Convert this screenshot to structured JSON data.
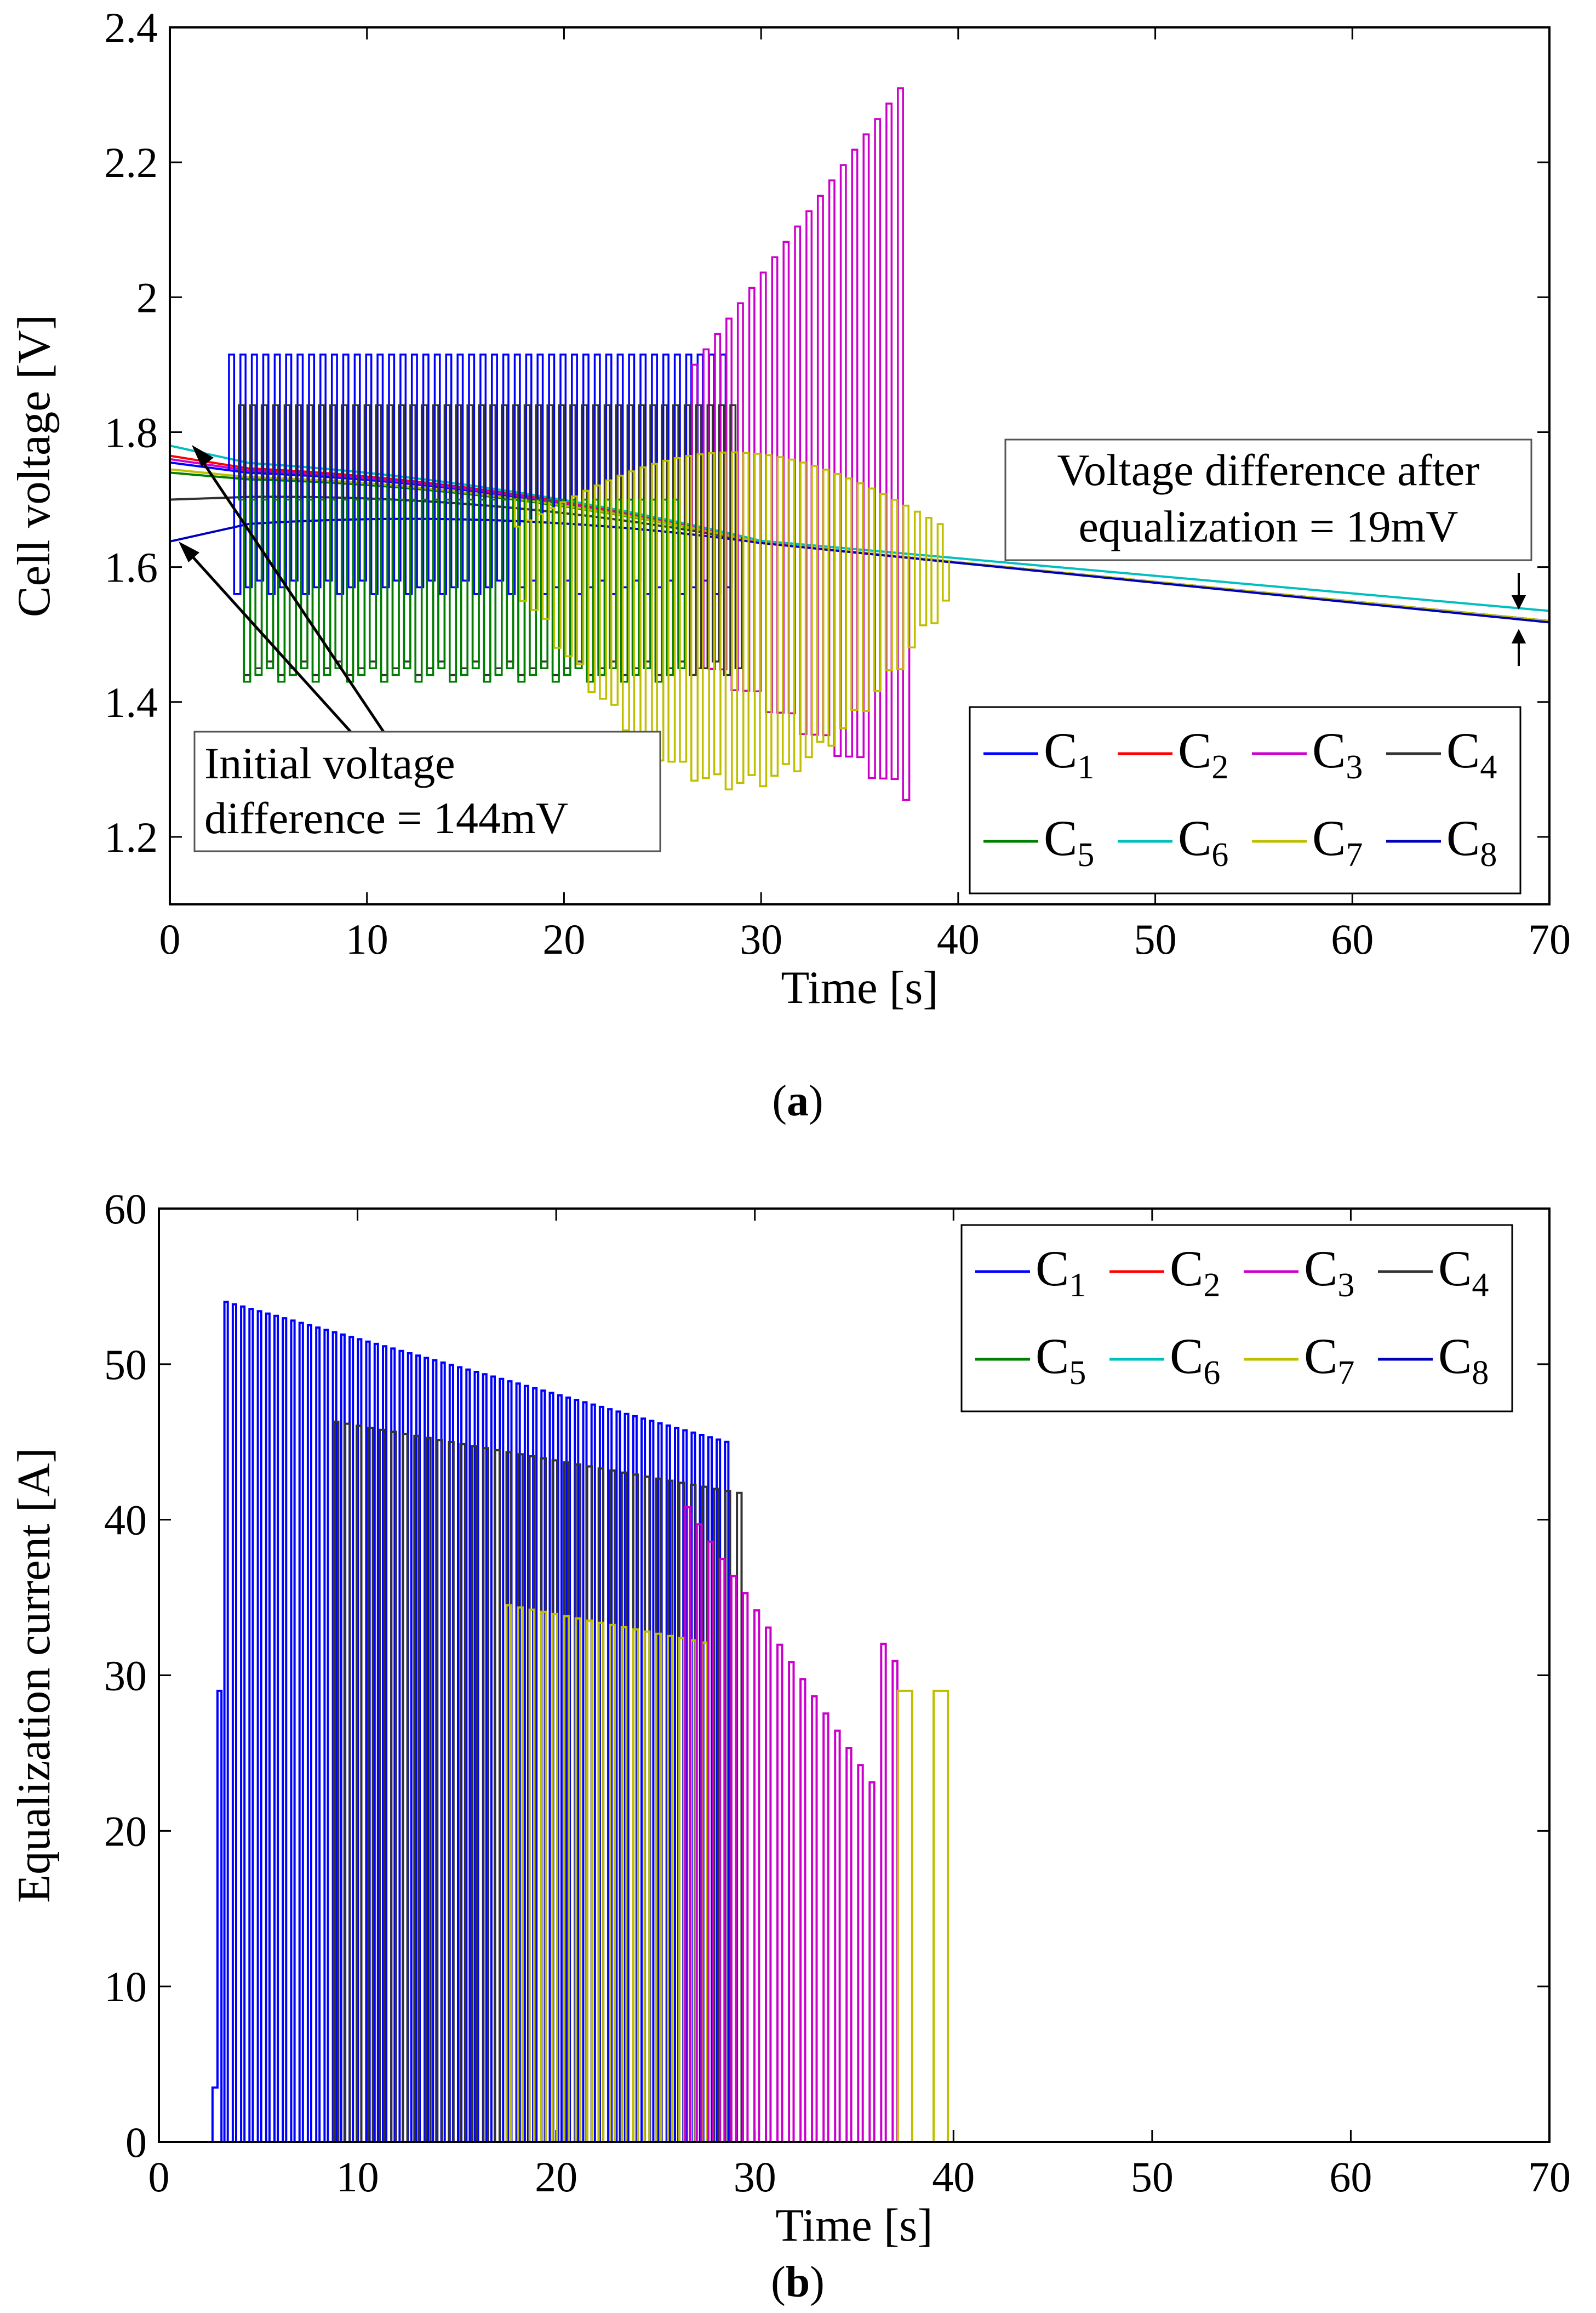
{
  "chart_data": [
    {
      "type": "line",
      "caption_letter": "a",
      "xlabel": "Time [s]",
      "ylabel": "Cell voltage [V]",
      "xlim": [
        0,
        70
      ],
      "ylim": [
        1.1,
        2.4
      ],
      "xticks": [
        "0",
        "10",
        "20",
        "30",
        "40",
        "50",
        "60",
        "70"
      ],
      "yticks": [
        "1.2",
        "1.4",
        "1.6",
        "1.8",
        "2",
        "2.2",
        "2.4"
      ],
      "legend_position": "bottom-right",
      "legend": [
        {
          "base": "C",
          "sub": "1",
          "color": "#0000ff"
        },
        {
          "base": "C",
          "sub": "2",
          "color": "#ff0000"
        },
        {
          "base": "C",
          "sub": "3",
          "color": "#cc00cc"
        },
        {
          "base": "C",
          "sub": "4",
          "color": "#333333"
        },
        {
          "base": "C",
          "sub": "5",
          "color": "#008000"
        },
        {
          "base": "C",
          "sub": "6",
          "color": "#00bfbf"
        },
        {
          "base": "C",
          "sub": "7",
          "color": "#bfbf00"
        },
        {
          "base": "C",
          "sub": "8",
          "color": "#0000bb"
        }
      ],
      "annotations": [
        {
          "lines": [
            "Voltage difference after",
            "equalization = 19mV"
          ]
        },
        {
          "lines": [
            "Initial voltage",
            "difference = 144mV"
          ]
        }
      ],
      "series": [
        {
          "name": "C1",
          "color": "#0000ff",
          "start_value": 1.755,
          "end_value": 1.52,
          "pulse_window": [
            3,
            28.5
          ],
          "pulse_high": 1.915,
          "pulse_low": 1.56
        },
        {
          "name": "C2",
          "color": "#ff0000",
          "start_value": 1.765,
          "end_value": 1.52,
          "pulse_window": null
        },
        {
          "name": "C3",
          "color": "#cc00cc",
          "start_value": 1.76,
          "end_value": 1.52,
          "pulse_window": [
            26.5,
            37.2
          ],
          "pulse_high": 2.32,
          "pulse_low": 1.22
        },
        {
          "name": "C4",
          "color": "#333333",
          "start_value": 1.7,
          "end_value": 1.52,
          "pulse_window": [
            3.5,
            29
          ],
          "pulse_high": 1.84,
          "pulse_low": 1.44
        },
        {
          "name": "C5",
          "color": "#008000",
          "start_value": 1.74,
          "end_value": 1.52,
          "pulse_window": [
            3.5,
            26
          ],
          "pulse_high": 1.7,
          "pulse_low": 1.43
        },
        {
          "name": "C6",
          "color": "#00bfbf",
          "start_value": 1.78,
          "end_value": 1.535,
          "pulse_window": null
        },
        {
          "name": "C7",
          "color": "#bfbf00",
          "start_value": 1.745,
          "end_value": 1.52,
          "pulse_window": [
            17.5,
            39.2
          ],
          "pulse_high": 1.77,
          "pulse_low": 1.25
        },
        {
          "name": "C8",
          "color": "#0000bb",
          "start_value": 1.638,
          "end_value": 1.518,
          "pulse_window": null
        }
      ]
    },
    {
      "type": "line",
      "caption_letter": "b",
      "xlabel": "Time [s]",
      "ylabel": "Equalization current [A]",
      "xlim": [
        0,
        70
      ],
      "ylim": [
        0,
        60
      ],
      "xticks": [
        "0",
        "10",
        "20",
        "30",
        "40",
        "50",
        "60",
        "70"
      ],
      "yticks": [
        "0",
        "10",
        "20",
        "30",
        "40",
        "50",
        "60"
      ],
      "legend_position": "top-right",
      "legend": [
        {
          "base": "C",
          "sub": "1",
          "color": "#0000ff"
        },
        {
          "base": "C",
          "sub": "2",
          "color": "#ff0000"
        },
        {
          "base": "C",
          "sub": "3",
          "color": "#cc00cc"
        },
        {
          "base": "C",
          "sub": "4",
          "color": "#333333"
        },
        {
          "base": "C",
          "sub": "5",
          "color": "#008000"
        },
        {
          "base": "C",
          "sub": "6",
          "color": "#00bfbf"
        },
        {
          "base": "C",
          "sub": "7",
          "color": "#bfbf00"
        },
        {
          "base": "C",
          "sub": "8",
          "color": "#0000bb"
        }
      ],
      "pulse_groups": [
        {
          "name": "C1",
          "color": "#0000ff",
          "t_start": 3.3,
          "t_end": 28.5,
          "peak_start": 54,
          "peak_end": 45
        },
        {
          "name": "C4",
          "color": "#333333",
          "t_start": 8.8,
          "t_end": 29.2,
          "peak_start": 46.3,
          "peak_end": 41.7
        },
        {
          "name": "C7",
          "color": "#bfbf00",
          "t_start": 17.5,
          "t_end": 27.8,
          "peak_start": 34.5,
          "peak_end": 32
        },
        {
          "name": "C3",
          "color": "#cc00cc",
          "t_start": 26.5,
          "t_end": 37,
          "peak_start": 40.8,
          "peak_end": 31.3
        },
        {
          "name": "C7",
          "color": "#bfbf00",
          "t_start": 37.2,
          "t_end": 39.2,
          "peak_start": 29,
          "peak_end": 29
        }
      ]
    }
  ]
}
